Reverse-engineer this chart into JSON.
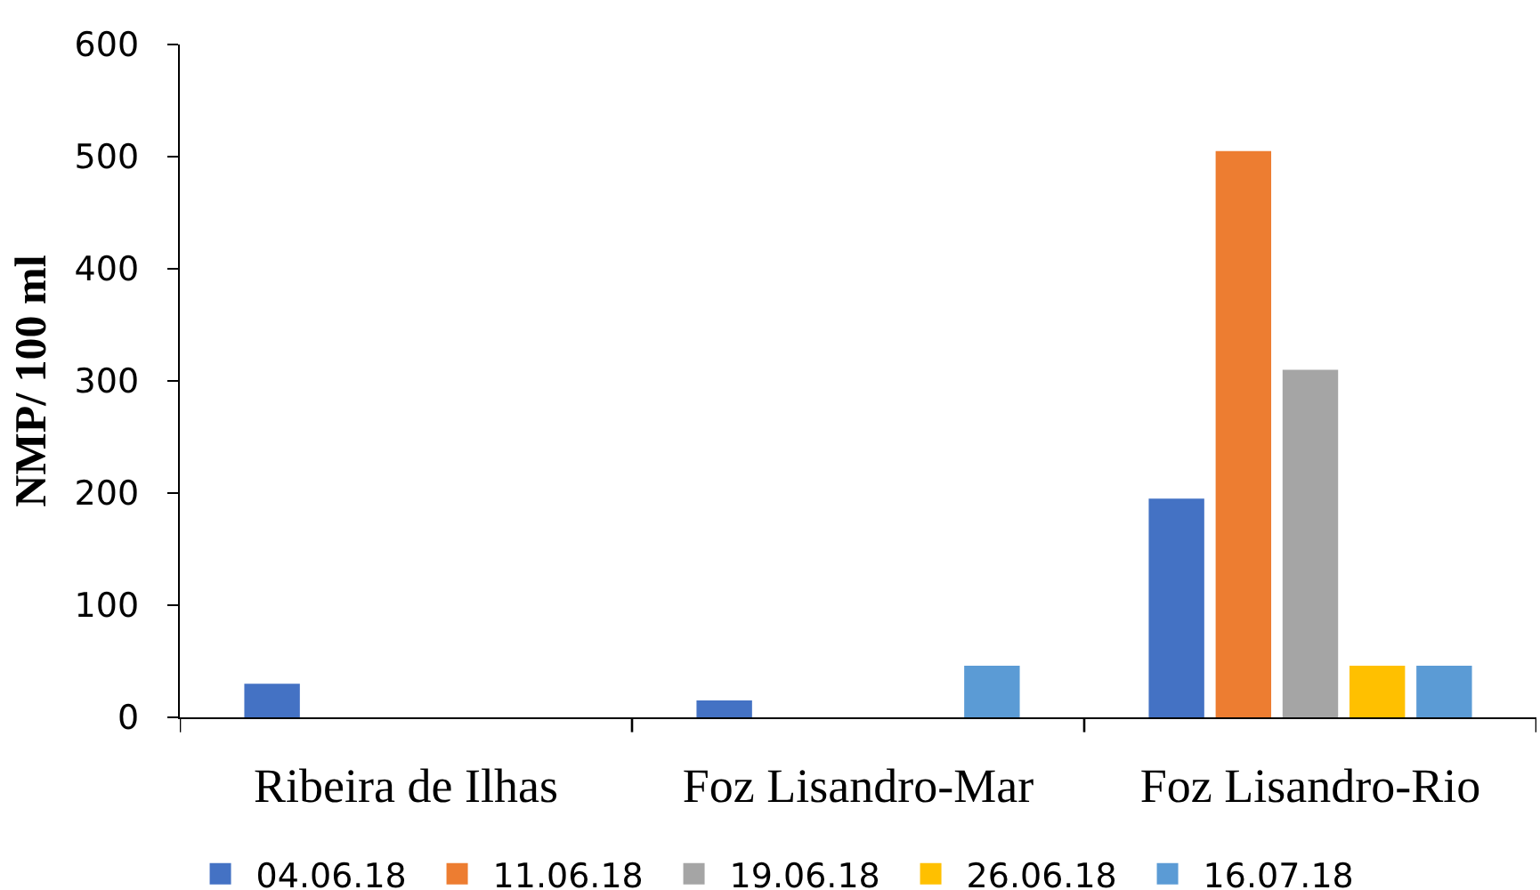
{
  "chart_data": {
    "type": "bar",
    "ylabel": "NMP/ 100 ml",
    "categories": [
      "Ribeira de Ilhas",
      "Foz Lisandro-Mar",
      "Foz Lisandro-Rio"
    ],
    "series": [
      {
        "name": "04.06.18",
        "color": "#4472c4",
        "values": [
          30,
          15,
          195
        ]
      },
      {
        "name": "11.06.18",
        "color": "#ed7d31",
        "values": [
          0,
          0,
          505
        ]
      },
      {
        "name": "19.06.18",
        "color": "#a5a5a5",
        "values": [
          0,
          0,
          310
        ]
      },
      {
        "name": "26.06.18",
        "color": "#ffc000",
        "values": [
          0,
          0,
          46
        ]
      },
      {
        "name": "16.07.18",
        "color": "#5b9bd5",
        "values": [
          0,
          46,
          46
        ]
      }
    ],
    "ylim": [
      0,
      600
    ],
    "yticks": [
      0,
      100,
      200,
      300,
      400,
      500,
      600
    ],
    "grid": false,
    "legend": "bottom"
  }
}
